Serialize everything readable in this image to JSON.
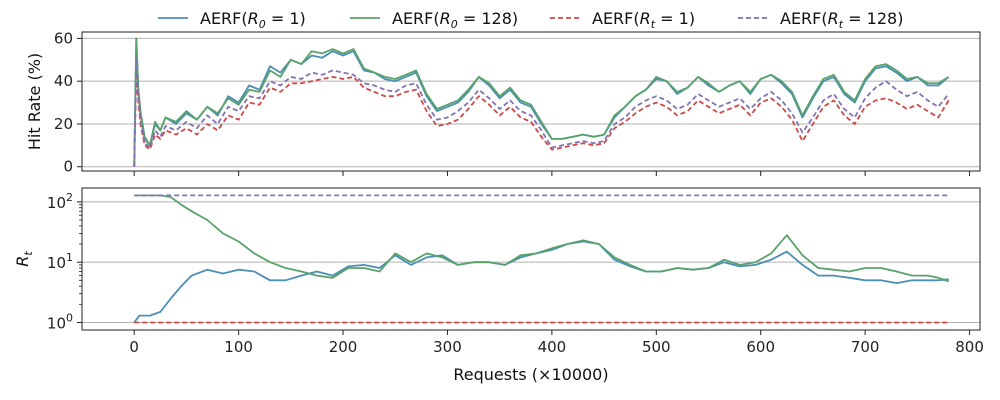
{
  "chart_data": [
    {
      "type": "line",
      "panel": "top",
      "ylabel": "Hit Rate (%)",
      "xlim": [
        -50,
        810
      ],
      "ylim": [
        -2,
        63
      ],
      "yticks": [
        0,
        20,
        40,
        60
      ],
      "grid": "horizontal",
      "x": [
        0,
        2,
        4,
        6,
        10,
        15,
        20,
        25,
        30,
        40,
        50,
        60,
        70,
        80,
        90,
        100,
        110,
        120,
        130,
        140,
        150,
        160,
        170,
        180,
        190,
        200,
        210,
        220,
        230,
        240,
        250,
        260,
        270,
        280,
        290,
        300,
        310,
        320,
        330,
        340,
        350,
        360,
        370,
        380,
        390,
        400,
        410,
        420,
        430,
        440,
        450,
        460,
        470,
        480,
        490,
        500,
        510,
        520,
        530,
        540,
        550,
        560,
        570,
        580,
        590,
        600,
        610,
        620,
        630,
        640,
        650,
        660,
        670,
        680,
        690,
        700,
        710,
        720,
        730,
        740,
        750,
        760,
        770,
        780
      ],
      "series": [
        {
          "name": "AERF(R0=1)",
          "legend_label": "AERF(",
          "legend_sym": "R",
          "legend_sub": "0",
          "legend_tail": " = 1)",
          "color": "#4c8fb5",
          "dash": "solid",
          "values": [
            0,
            60,
            35,
            25,
            13,
            10,
            20,
            17,
            23,
            20,
            25,
            22,
            28,
            24,
            33,
            30,
            38,
            36,
            47,
            44,
            50,
            48,
            52,
            51,
            54,
            52,
            54,
            45,
            44,
            41,
            40,
            42,
            44,
            33,
            26,
            28,
            30,
            35,
            42,
            38,
            32,
            36,
            30,
            28,
            20,
            13,
            13,
            14,
            15,
            14,
            15,
            23,
            28,
            33,
            36,
            41,
            40,
            34,
            37,
            42,
            38,
            35,
            38,
            40,
            34,
            41,
            43,
            39,
            34,
            23,
            32,
            40,
            42,
            34,
            30,
            40,
            46,
            47,
            44,
            40,
            42,
            38,
            38,
            42
          ]
        },
        {
          "name": "AERF(R0=128)",
          "legend_label": "AERF(",
          "legend_sym": "R",
          "legend_sub": "0",
          "legend_tail": " = 128)",
          "color": "#59a36b",
          "dash": "solid",
          "values": [
            0,
            60,
            36,
            26,
            14,
            10,
            21,
            17,
            23,
            21,
            26,
            22,
            28,
            25,
            32,
            29,
            36,
            35,
            45,
            42,
            50,
            48,
            54,
            53,
            55,
            53,
            55,
            46,
            44,
            42,
            41,
            43,
            45,
            34,
            27,
            29,
            31,
            36,
            42,
            39,
            33,
            37,
            31,
            29,
            21,
            13,
            13,
            14,
            15,
            14,
            15,
            24,
            28,
            33,
            36,
            42,
            40,
            35,
            37,
            42,
            39,
            35,
            38,
            40,
            35,
            41,
            43,
            40,
            35,
            24,
            33,
            41,
            43,
            35,
            31,
            41,
            47,
            48,
            45,
            41,
            42,
            39,
            39,
            42
          ]
        },
        {
          "name": "AERF(Rt=1)",
          "legend_label": "AERF(",
          "legend_sym": "R",
          "legend_sub": "t",
          "legend_tail": " = 1)",
          "color": "#cc4a4a",
          "dash": "dashed",
          "values": [
            0,
            44,
            30,
            20,
            10,
            8,
            15,
            13,
            17,
            15,
            18,
            15,
            20,
            17,
            24,
            22,
            30,
            29,
            37,
            35,
            39,
            39,
            40,
            41,
            42,
            41,
            42,
            37,
            35,
            33,
            33,
            35,
            36,
            26,
            19,
            20,
            22,
            27,
            33,
            29,
            24,
            28,
            23,
            21,
            14,
            8,
            9,
            10,
            11,
            10,
            11,
            18,
            21,
            25,
            28,
            30,
            28,
            24,
            26,
            31,
            28,
            25,
            27,
            29,
            24,
            30,
            32,
            28,
            22,
            12,
            20,
            28,
            31,
            24,
            20,
            28,
            31,
            32,
            30,
            27,
            29,
            26,
            23,
            31
          ]
        },
        {
          "name": "AERF(Rt=128)",
          "legend_label": "AERF(",
          "legend_sym": "R",
          "legend_sub": "t",
          "legend_tail": " = 128)",
          "color": "#8172b2",
          "dash": "dashed",
          "values": [
            0,
            50,
            33,
            22,
            11,
            9,
            17,
            14,
            19,
            17,
            21,
            18,
            24,
            20,
            28,
            26,
            33,
            32,
            40,
            38,
            42,
            41,
            44,
            43,
            45,
            44,
            43,
            39,
            38,
            36,
            35,
            38,
            39,
            29,
            22,
            23,
            26,
            30,
            36,
            32,
            27,
            31,
            26,
            24,
            17,
            9,
            10,
            11,
            12,
            11,
            12,
            20,
            23,
            28,
            31,
            33,
            31,
            27,
            29,
            34,
            31,
            28,
            30,
            32,
            27,
            32,
            35,
            31,
            25,
            16,
            23,
            31,
            34,
            27,
            23,
            32,
            37,
            40,
            36,
            33,
            35,
            31,
            28,
            34
          ]
        }
      ]
    },
    {
      "type": "line",
      "panel": "bottom",
      "ylabel_sym": "R",
      "ylabel_sub": "t",
      "xlabel": "Requests (×10000)",
      "xlim": [
        -50,
        810
      ],
      "xticks": [
        0,
        100,
        200,
        300,
        400,
        500,
        600,
        700,
        800
      ],
      "yscale": "log",
      "ylim": [
        0.75,
        170
      ],
      "yticks": [
        {
          "value": 1,
          "base": "10",
          "exp": "0"
        },
        {
          "value": 10,
          "base": "10",
          "exp": "1"
        },
        {
          "value": 100,
          "base": "10",
          "exp": "2"
        }
      ],
      "grid": "horizontal",
      "x": [
        0,
        5,
        15,
        25,
        35,
        45,
        55,
        70,
        85,
        100,
        115,
        130,
        145,
        160,
        175,
        190,
        205,
        220,
        235,
        250,
        265,
        280,
        295,
        310,
        325,
        340,
        355,
        370,
        385,
        400,
        415,
        430,
        445,
        460,
        475,
        490,
        505,
        520,
        535,
        550,
        565,
        580,
        595,
        610,
        625,
        640,
        655,
        670,
        685,
        700,
        715,
        730,
        745,
        760,
        770,
        780
      ],
      "series": [
        {
          "name": "AERF(R0=1)",
          "color": "#4c8fb5",
          "dash": "solid",
          "values": [
            1,
            1.3,
            1.3,
            1.5,
            2.5,
            4,
            6,
            7.5,
            6.5,
            7.5,
            7,
            5,
            5,
            6,
            7,
            6,
            8.5,
            9,
            8,
            13,
            9,
            12,
            13,
            9,
            10,
            10,
            9,
            12,
            14,
            16,
            20,
            22,
            20,
            11,
            8.5,
            7,
            7,
            8,
            7.5,
            8,
            10,
            8.5,
            9,
            11,
            15,
            9,
            6,
            6,
            5.5,
            5,
            5,
            4.5,
            5,
            5,
            5,
            5.2
          ]
        },
        {
          "name": "AERF(R0=128)",
          "color": "#59a36b",
          "dash": "solid",
          "values": [
            128,
            128,
            128,
            128,
            120,
            90,
            70,
            50,
            30,
            22,
            14,
            10,
            8,
            7,
            6,
            5.5,
            8,
            8,
            7,
            14,
            10,
            14,
            12,
            9,
            10,
            10,
            9,
            13,
            14,
            17,
            20,
            23,
            20,
            12,
            9,
            7,
            7,
            8,
            7.5,
            8,
            11,
            9,
            10,
            14,
            28,
            13,
            8,
            7.5,
            7,
            8,
            8,
            7,
            6,
            6,
            5.5,
            4.8
          ]
        },
        {
          "name": "AERF(Rt=1)",
          "color": "#cc4a4a",
          "dash": "dashed",
          "values": [
            1,
            1,
            1,
            1,
            1,
            1,
            1,
            1,
            1,
            1,
            1,
            1,
            1,
            1,
            1,
            1,
            1,
            1,
            1,
            1,
            1,
            1,
            1,
            1,
            1,
            1,
            1,
            1,
            1,
            1,
            1,
            1,
            1,
            1,
            1,
            1,
            1,
            1,
            1,
            1,
            1,
            1,
            1,
            1,
            1,
            1,
            1,
            1,
            1,
            1,
            1,
            1,
            1,
            1,
            1,
            1
          ]
        },
        {
          "name": "AERF(Rt=128)",
          "color": "#8172b2",
          "dash": "dashed",
          "values": [
            128,
            128,
            128,
            128,
            128,
            128,
            128,
            128,
            128,
            128,
            128,
            128,
            128,
            128,
            128,
            128,
            128,
            128,
            128,
            128,
            128,
            128,
            128,
            128,
            128,
            128,
            128,
            128,
            128,
            128,
            128,
            128,
            128,
            128,
            128,
            128,
            128,
            128,
            128,
            128,
            128,
            128,
            128,
            128,
            128,
            128,
            128,
            128,
            128,
            128,
            128,
            128,
            128,
            128,
            128,
            128
          ]
        }
      ]
    }
  ]
}
